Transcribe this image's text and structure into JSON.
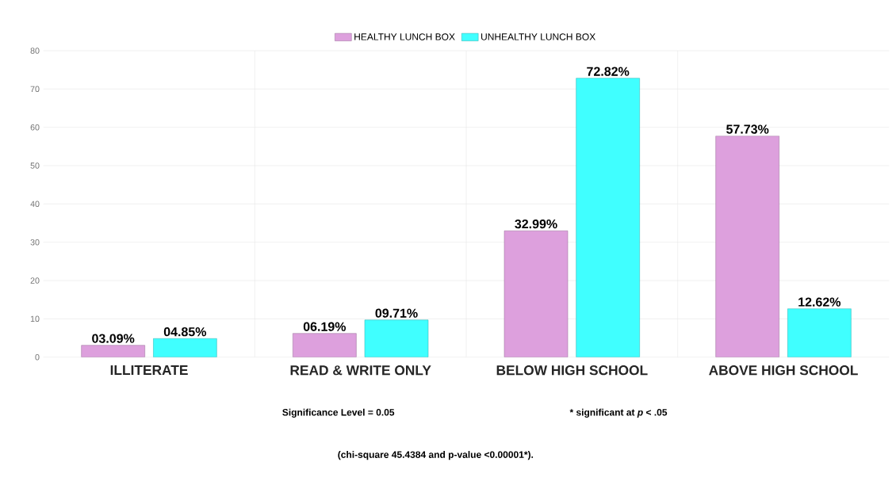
{
  "chart_data": {
    "type": "bar",
    "categories": [
      "ILLITERATE",
      "READ & WRITE ONLY",
      "BELOW HIGH SCHOOL",
      "ABOVE HIGH SCHOOL"
    ],
    "series": [
      {
        "name": "HEALTHY LUNCH BOX",
        "color": "#dda0dd",
        "values": [
          3.09,
          6.19,
          32.99,
          57.73
        ],
        "value_labels": [
          "03.09%",
          "06.19%",
          "32.99%",
          "57.73%"
        ]
      },
      {
        "name": "UNHEALTHY LUNCH BOX",
        "color": "#40ffff",
        "values": [
          4.85,
          9.71,
          72.82,
          12.62
        ],
        "value_labels": [
          "04.85%",
          "09.71%",
          "72.82%",
          "12.62%"
        ]
      }
    ],
    "ylim": [
      0,
      80
    ],
    "yticks": [
      0,
      10,
      20,
      30,
      40,
      50,
      60,
      70,
      80
    ],
    "grid": true,
    "legend": "top",
    "annotations": [
      "Significance Level = 0.05",
      "* significant at *p* < .05",
      "(chi-square 45.4384 and p-value <0.00001*)."
    ]
  }
}
